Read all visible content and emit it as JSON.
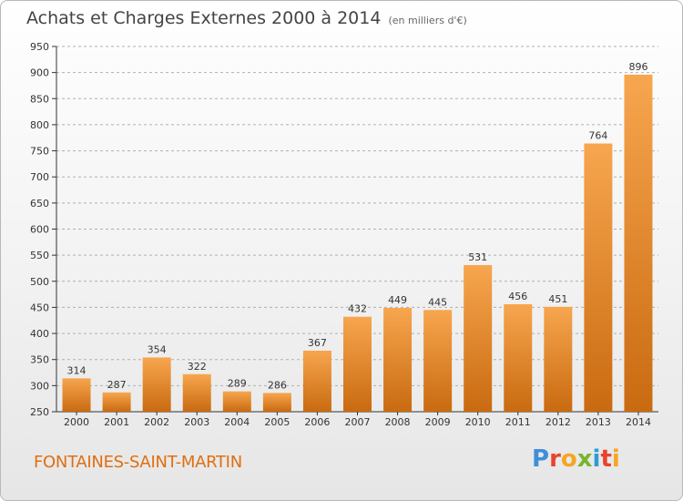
{
  "title": "Achats et Charges Externes 2000 à 2014",
  "unit": "(en milliers d'€)",
  "location": "FONTAINES-SAINT-MARTIN",
  "brand": {
    "letters": [
      "P",
      "r",
      "o",
      "x",
      "i",
      "t",
      "i"
    ],
    "colors": [
      "#3f8fd8",
      "#e8432f",
      "#f5a623",
      "#78b52e",
      "#2e9bd6",
      "#e8432f",
      "#f5a623"
    ]
  },
  "colors": {
    "bar_light": "#f7a64f",
    "bar_dark": "#c96a10",
    "location": "#e06f10"
  },
  "chart_data": {
    "type": "bar",
    "categories": [
      "2000",
      "2001",
      "2002",
      "2003",
      "2004",
      "2005",
      "2006",
      "2007",
      "2008",
      "2009",
      "2010",
      "2011",
      "2012",
      "2013",
      "2014"
    ],
    "values": [
      314,
      287,
      354,
      322,
      289,
      286,
      367,
      432,
      449,
      445,
      531,
      456,
      451,
      764,
      896
    ],
    "ylim": [
      250,
      950
    ],
    "yticks": [
      250,
      300,
      350,
      400,
      450,
      500,
      550,
      600,
      650,
      700,
      750,
      800,
      850,
      900,
      950
    ],
    "grid": "horizontal dashed"
  }
}
